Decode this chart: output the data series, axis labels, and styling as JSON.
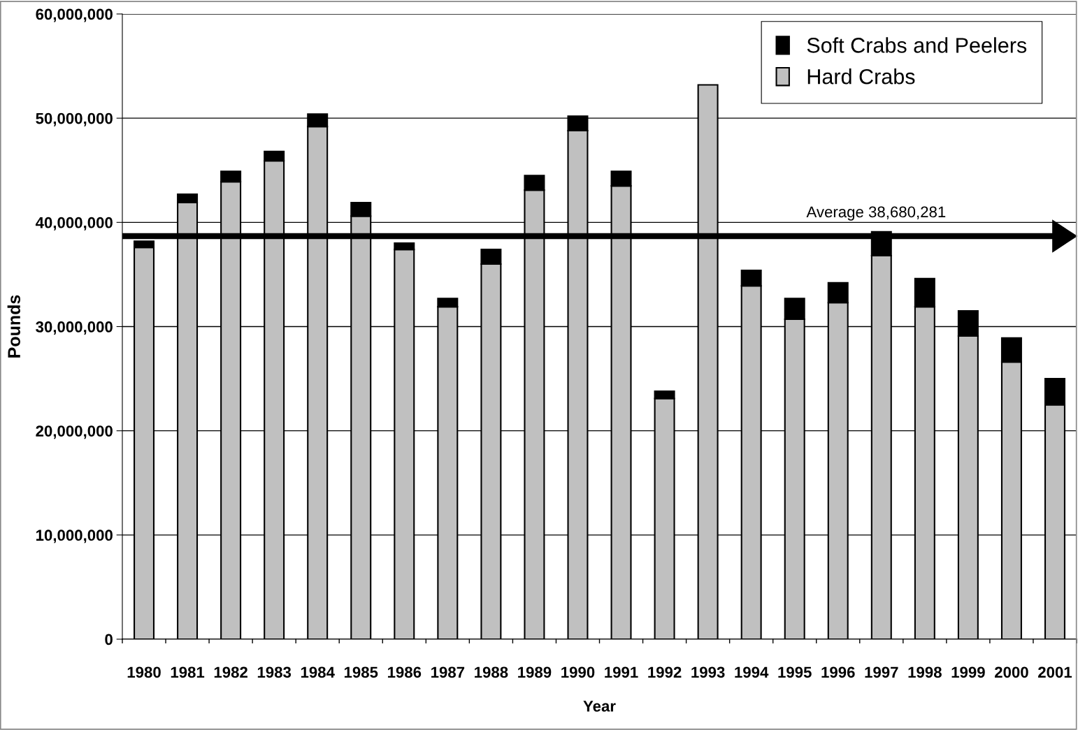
{
  "chart_data": {
    "type": "bar",
    "stacked": true,
    "xlabel": "Year",
    "ylabel": "Pounds",
    "categories": [
      "1980",
      "1981",
      "1982",
      "1983",
      "1984",
      "1985",
      "1986",
      "1987",
      "1988",
      "1989",
      "1990",
      "1991",
      "1992",
      "1993",
      "1994",
      "1995",
      "1996",
      "1997",
      "1998",
      "1999",
      "2000",
      "2001"
    ],
    "series": [
      {
        "name": "Hard Crabs",
        "color": "#c0c0c0",
        "values": [
          37600000,
          41900000,
          43900000,
          45900000,
          49200000,
          40600000,
          37400000,
          31900000,
          36000000,
          43100000,
          48800000,
          43500000,
          23100000,
          53200000,
          33900000,
          30700000,
          32300000,
          36800000,
          31900000,
          29100000,
          26600000,
          22500000
        ]
      },
      {
        "name": "Soft Crabs and Peelers",
        "color": "#000000",
        "values": [
          600000,
          800000,
          1000000,
          900000,
          1200000,
          1300000,
          600000,
          800000,
          1400000,
          1400000,
          1400000,
          1400000,
          700000,
          null,
          1500000,
          2000000,
          1900000,
          2300000,
          2700000,
          2400000,
          2300000,
          2500000
        ]
      }
    ],
    "ylim": [
      0,
      60000000
    ],
    "yticks": [
      {
        "value": 0,
        "label": "0"
      },
      {
        "value": 10000000,
        "label": "10,000,000"
      },
      {
        "value": 20000000,
        "label": "20,000,000"
      },
      {
        "value": 30000000,
        "label": "30,000,000"
      },
      {
        "value": 40000000,
        "label": "40,000,000"
      },
      {
        "value": 50000000,
        "label": "50,000,000"
      },
      {
        "value": 60000000,
        "label": "60,000,000"
      }
    ],
    "ref_lines": [
      {
        "axis": "y",
        "value": 38680281,
        "label": "Average 38,680,281",
        "color": "#000000"
      }
    ],
    "grid": "y",
    "legend": "top right"
  }
}
